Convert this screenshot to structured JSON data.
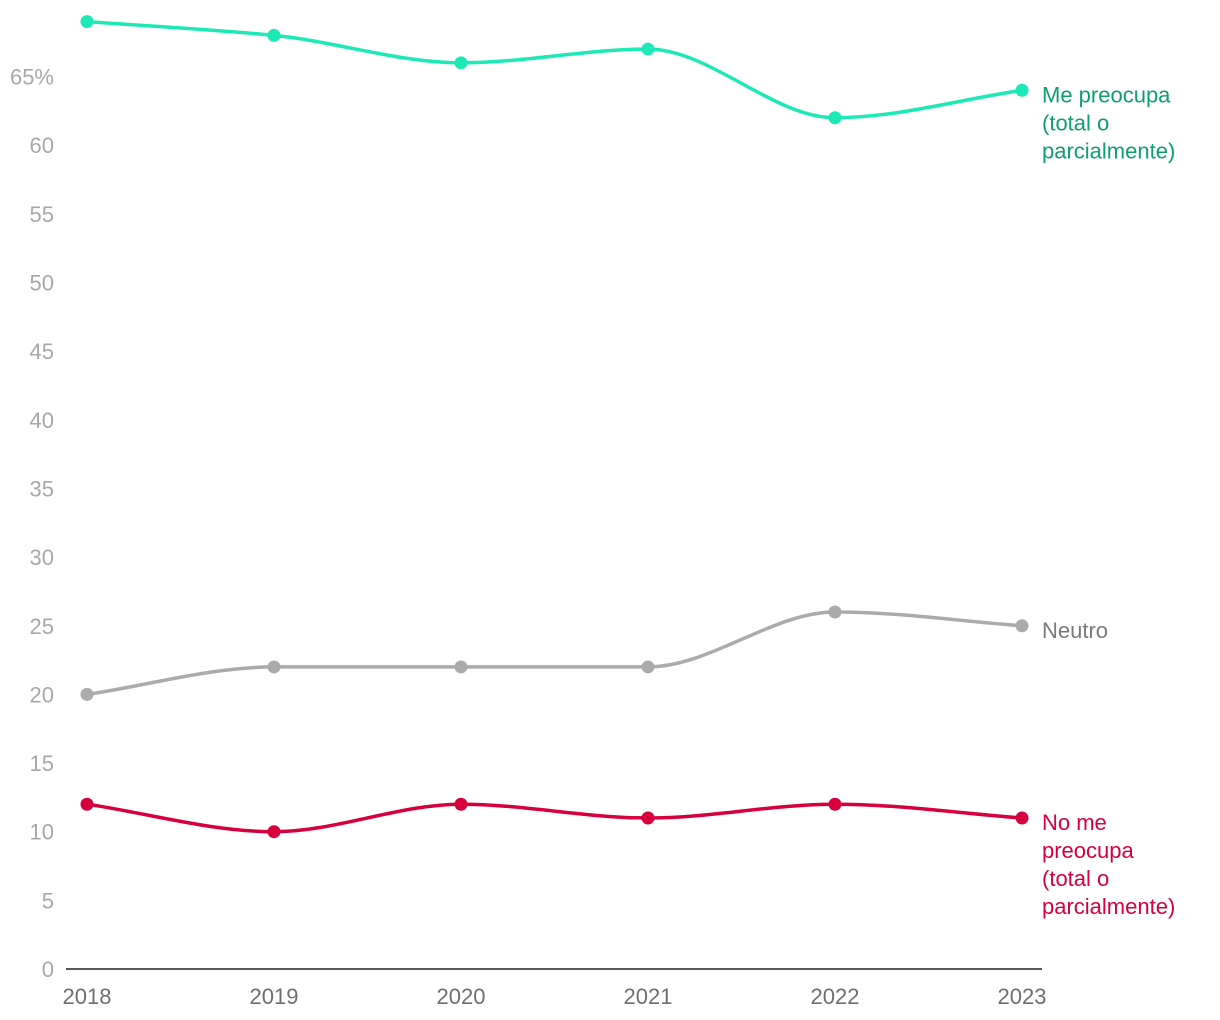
{
  "chart_data": {
    "type": "line",
    "title": "",
    "xlabel": "",
    "ylabel": "",
    "x": [
      "2018",
      "2019",
      "2020",
      "2021",
      "2022",
      "2023"
    ],
    "ylim": [
      0,
      70
    ],
    "yticks": [
      {
        "value": 0,
        "label": "0"
      },
      {
        "value": 5,
        "label": "5"
      },
      {
        "value": 10,
        "label": "10"
      },
      {
        "value": 15,
        "label": "15"
      },
      {
        "value": 20,
        "label": "20"
      },
      {
        "value": 25,
        "label": "25"
      },
      {
        "value": 30,
        "label": "30"
      },
      {
        "value": 35,
        "label": "35"
      },
      {
        "value": 40,
        "label": "40"
      },
      {
        "value": 45,
        "label": "45"
      },
      {
        "value": 50,
        "label": "50"
      },
      {
        "value": 55,
        "label": "55"
      },
      {
        "value": 60,
        "label": "60"
      },
      {
        "value": 65,
        "label": "65%"
      }
    ],
    "grid": false,
    "series": [
      {
        "name": "Me preocupa (total o parcialmente)",
        "label_lines": [
          "Me preocupa",
          "(total o",
          "parcialmente)"
        ],
        "line_color": "#1de9b6",
        "label_color": "#0e9f6e",
        "values": [
          69,
          68,
          66,
          67,
          62,
          64
        ]
      },
      {
        "name": "Neutro",
        "label_lines": [
          "Neutro"
        ],
        "line_color": "#ababab",
        "label_color": "#7a7a7a",
        "values": [
          20,
          22,
          22,
          22,
          26,
          25
        ]
      },
      {
        "name": "No me preocupa (total o parcialmente)",
        "label_lines": [
          "No me",
          "preocupa",
          "(total o",
          "parcialmente)"
        ],
        "line_color": "#d6003e",
        "label_color": "#d6003e",
        "values": [
          12,
          10,
          12,
          11,
          12,
          11
        ]
      }
    ]
  }
}
